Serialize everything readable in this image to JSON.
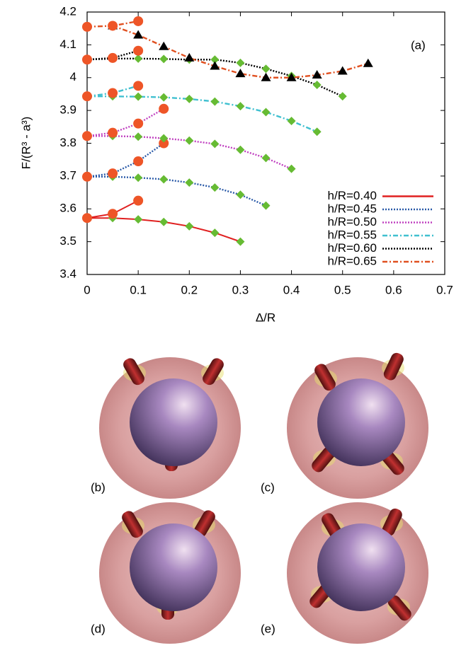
{
  "chart_data": {
    "type": "line",
    "xlabel": "Δ/R",
    "ylabel": "F/(R³ - a³)",
    "annotation": "(a)",
    "xlim": [
      0,
      0.7
    ],
    "xticks": [
      0,
      0.1,
      0.2,
      0.3,
      0.4,
      0.5,
      0.6,
      0.7
    ],
    "ylim": [
      3.4,
      4.2
    ],
    "yticks": [
      3.4,
      3.5,
      3.6,
      3.7,
      3.8,
      3.9,
      4,
      4.1,
      4.2
    ],
    "legend": "lower right",
    "marker_colors": {
      "circle": "#ee5527",
      "diamond": "#66bb33",
      "triangle": "#000000"
    },
    "series": [
      {
        "name": "h/R=0.40",
        "color": "#e02020",
        "dash": "solid",
        "branches": [
          {
            "marker": "diamond",
            "x": [
              0,
              0.05,
              0.1,
              0.15,
              0.2,
              0.25,
              0.3
            ],
            "values": [
              3.572,
              3.572,
              3.568,
              3.56,
              3.547,
              3.527,
              3.5
            ]
          },
          {
            "marker": "circle",
            "x": [
              0,
              0.05,
              0.1
            ],
            "values": [
              3.572,
              3.585,
              3.625
            ]
          }
        ]
      },
      {
        "name": "h/R=0.45",
        "color": "#2a5aa8",
        "dash": "dotted",
        "branches": [
          {
            "marker": "diamond",
            "x": [
              0,
              0.05,
              0.1,
              0.15,
              0.2,
              0.25,
              0.3,
              0.35
            ],
            "values": [
              3.698,
              3.698,
              3.695,
              3.69,
              3.68,
              3.665,
              3.643,
              3.61
            ]
          },
          {
            "marker": "circle",
            "x": [
              0,
              0.05,
              0.1,
              0.15
            ],
            "values": [
              3.698,
              3.708,
              3.745,
              3.8
            ]
          }
        ]
      },
      {
        "name": "h/R=0.50",
        "color": "#c040c0",
        "dash": "dotted",
        "branches": [
          {
            "marker": "diamond",
            "x": [
              0,
              0.05,
              0.1,
              0.15,
              0.2,
              0.25,
              0.3,
              0.35,
              0.4
            ],
            "values": [
              3.822,
              3.822,
              3.82,
              3.815,
              3.808,
              3.798,
              3.78,
              3.755,
              3.722
            ]
          },
          {
            "marker": "circle",
            "x": [
              0,
              0.05,
              0.1,
              0.15
            ],
            "values": [
              3.822,
              3.832,
              3.86,
              3.905
            ]
          }
        ]
      },
      {
        "name": "h/R=0.55",
        "color": "#40c0d0",
        "dash": "dashdot",
        "branches": [
          {
            "marker": "diamond",
            "x": [
              0,
              0.05,
              0.1,
              0.15,
              0.2,
              0.25,
              0.3,
              0.35,
              0.4,
              0.45
            ],
            "values": [
              3.943,
              3.943,
              3.942,
              3.94,
              3.935,
              3.927,
              3.913,
              3.895,
              3.868,
              3.835
            ]
          },
          {
            "marker": "circle",
            "x": [
              0,
              0.05,
              0.1
            ],
            "values": [
              3.943,
              3.953,
              3.975
            ]
          }
        ]
      },
      {
        "name": "h/R=0.60",
        "color": "#000000",
        "dash": "dotted",
        "branches": [
          {
            "marker": "diamond",
            "x": [
              0,
              0.05,
              0.1,
              0.15,
              0.2,
              0.25,
              0.3,
              0.35,
              0.4,
              0.45,
              0.5
            ],
            "values": [
              4.055,
              4.058,
              4.058,
              4.057,
              4.055,
              4.055,
              4.045,
              4.027,
              4.005,
              3.978,
              3.943
            ]
          },
          {
            "marker": "circle",
            "x": [
              0,
              0.05,
              0.1
            ],
            "values": [
              4.055,
              4.06,
              4.082
            ]
          }
        ]
      },
      {
        "name": "h/R=0.65",
        "color": "#e05020",
        "dash": "dashdot",
        "branches": [
          {
            "marker": "triangle",
            "x": [
              0.05,
              0.1,
              0.15,
              0.2,
              0.25,
              0.3,
              0.35,
              0.4,
              0.45,
              0.5,
              0.55
            ],
            "values": [
              4.158,
              4.13,
              4.095,
              4.06,
              4.035,
              4.012,
              4,
              4,
              4.008,
              4.02,
              4.043
            ]
          },
          {
            "marker": "circle",
            "x": [
              0,
              0.05,
              0.1
            ],
            "values": [
              4.155,
              4.158,
              4.172
            ]
          }
        ]
      }
    ]
  },
  "panels": [
    {
      "label": "(b)"
    },
    {
      "label": "(c)"
    },
    {
      "label": "(d)"
    },
    {
      "label": "(e)"
    }
  ]
}
